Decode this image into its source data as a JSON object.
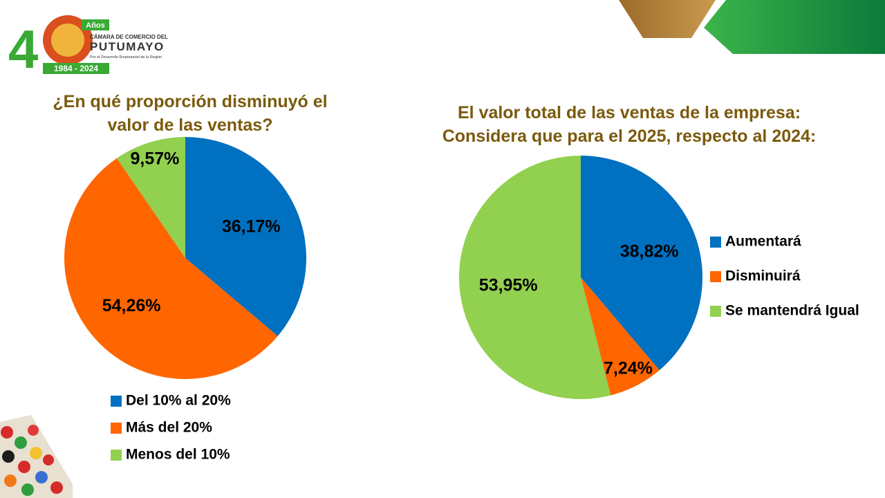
{
  "logo": {
    "badge": "Años",
    "line1": "CÁMARA DE COMERCIO DEL",
    "line2": "PUTUMAYO",
    "line3": "Por el Desarrollo Empresarial de la Región",
    "years": "1984 - 2024"
  },
  "chart_data": [
    {
      "type": "pie",
      "title": "¿En qué proporción disminuyó el valor de las ventas?",
      "categories": [
        "Del 10% al 20%",
        "Más del 20%",
        "Menos del 10%"
      ],
      "values": [
        36.17,
        54.26,
        9.57
      ],
      "value_labels": [
        "36,17%",
        "54,26%",
        "9,57%"
      ],
      "colors": [
        "#0070c0",
        "#ff6600",
        "#92d050"
      ],
      "legend": "bottom"
    },
    {
      "type": "pie",
      "title": "El valor total de las ventas de la empresa: Considera que para el 2025, respecto al 2024:",
      "categories": [
        "Aumentará",
        "Disminuirá",
        "Se mantendrá Igual"
      ],
      "values": [
        38.82,
        7.24,
        53.95
      ],
      "value_labels": [
        "38,82%",
        "7,24%",
        "53,95%"
      ],
      "colors": [
        "#0070c0",
        "#ff6600",
        "#92d050"
      ],
      "legend": "right"
    }
  ]
}
